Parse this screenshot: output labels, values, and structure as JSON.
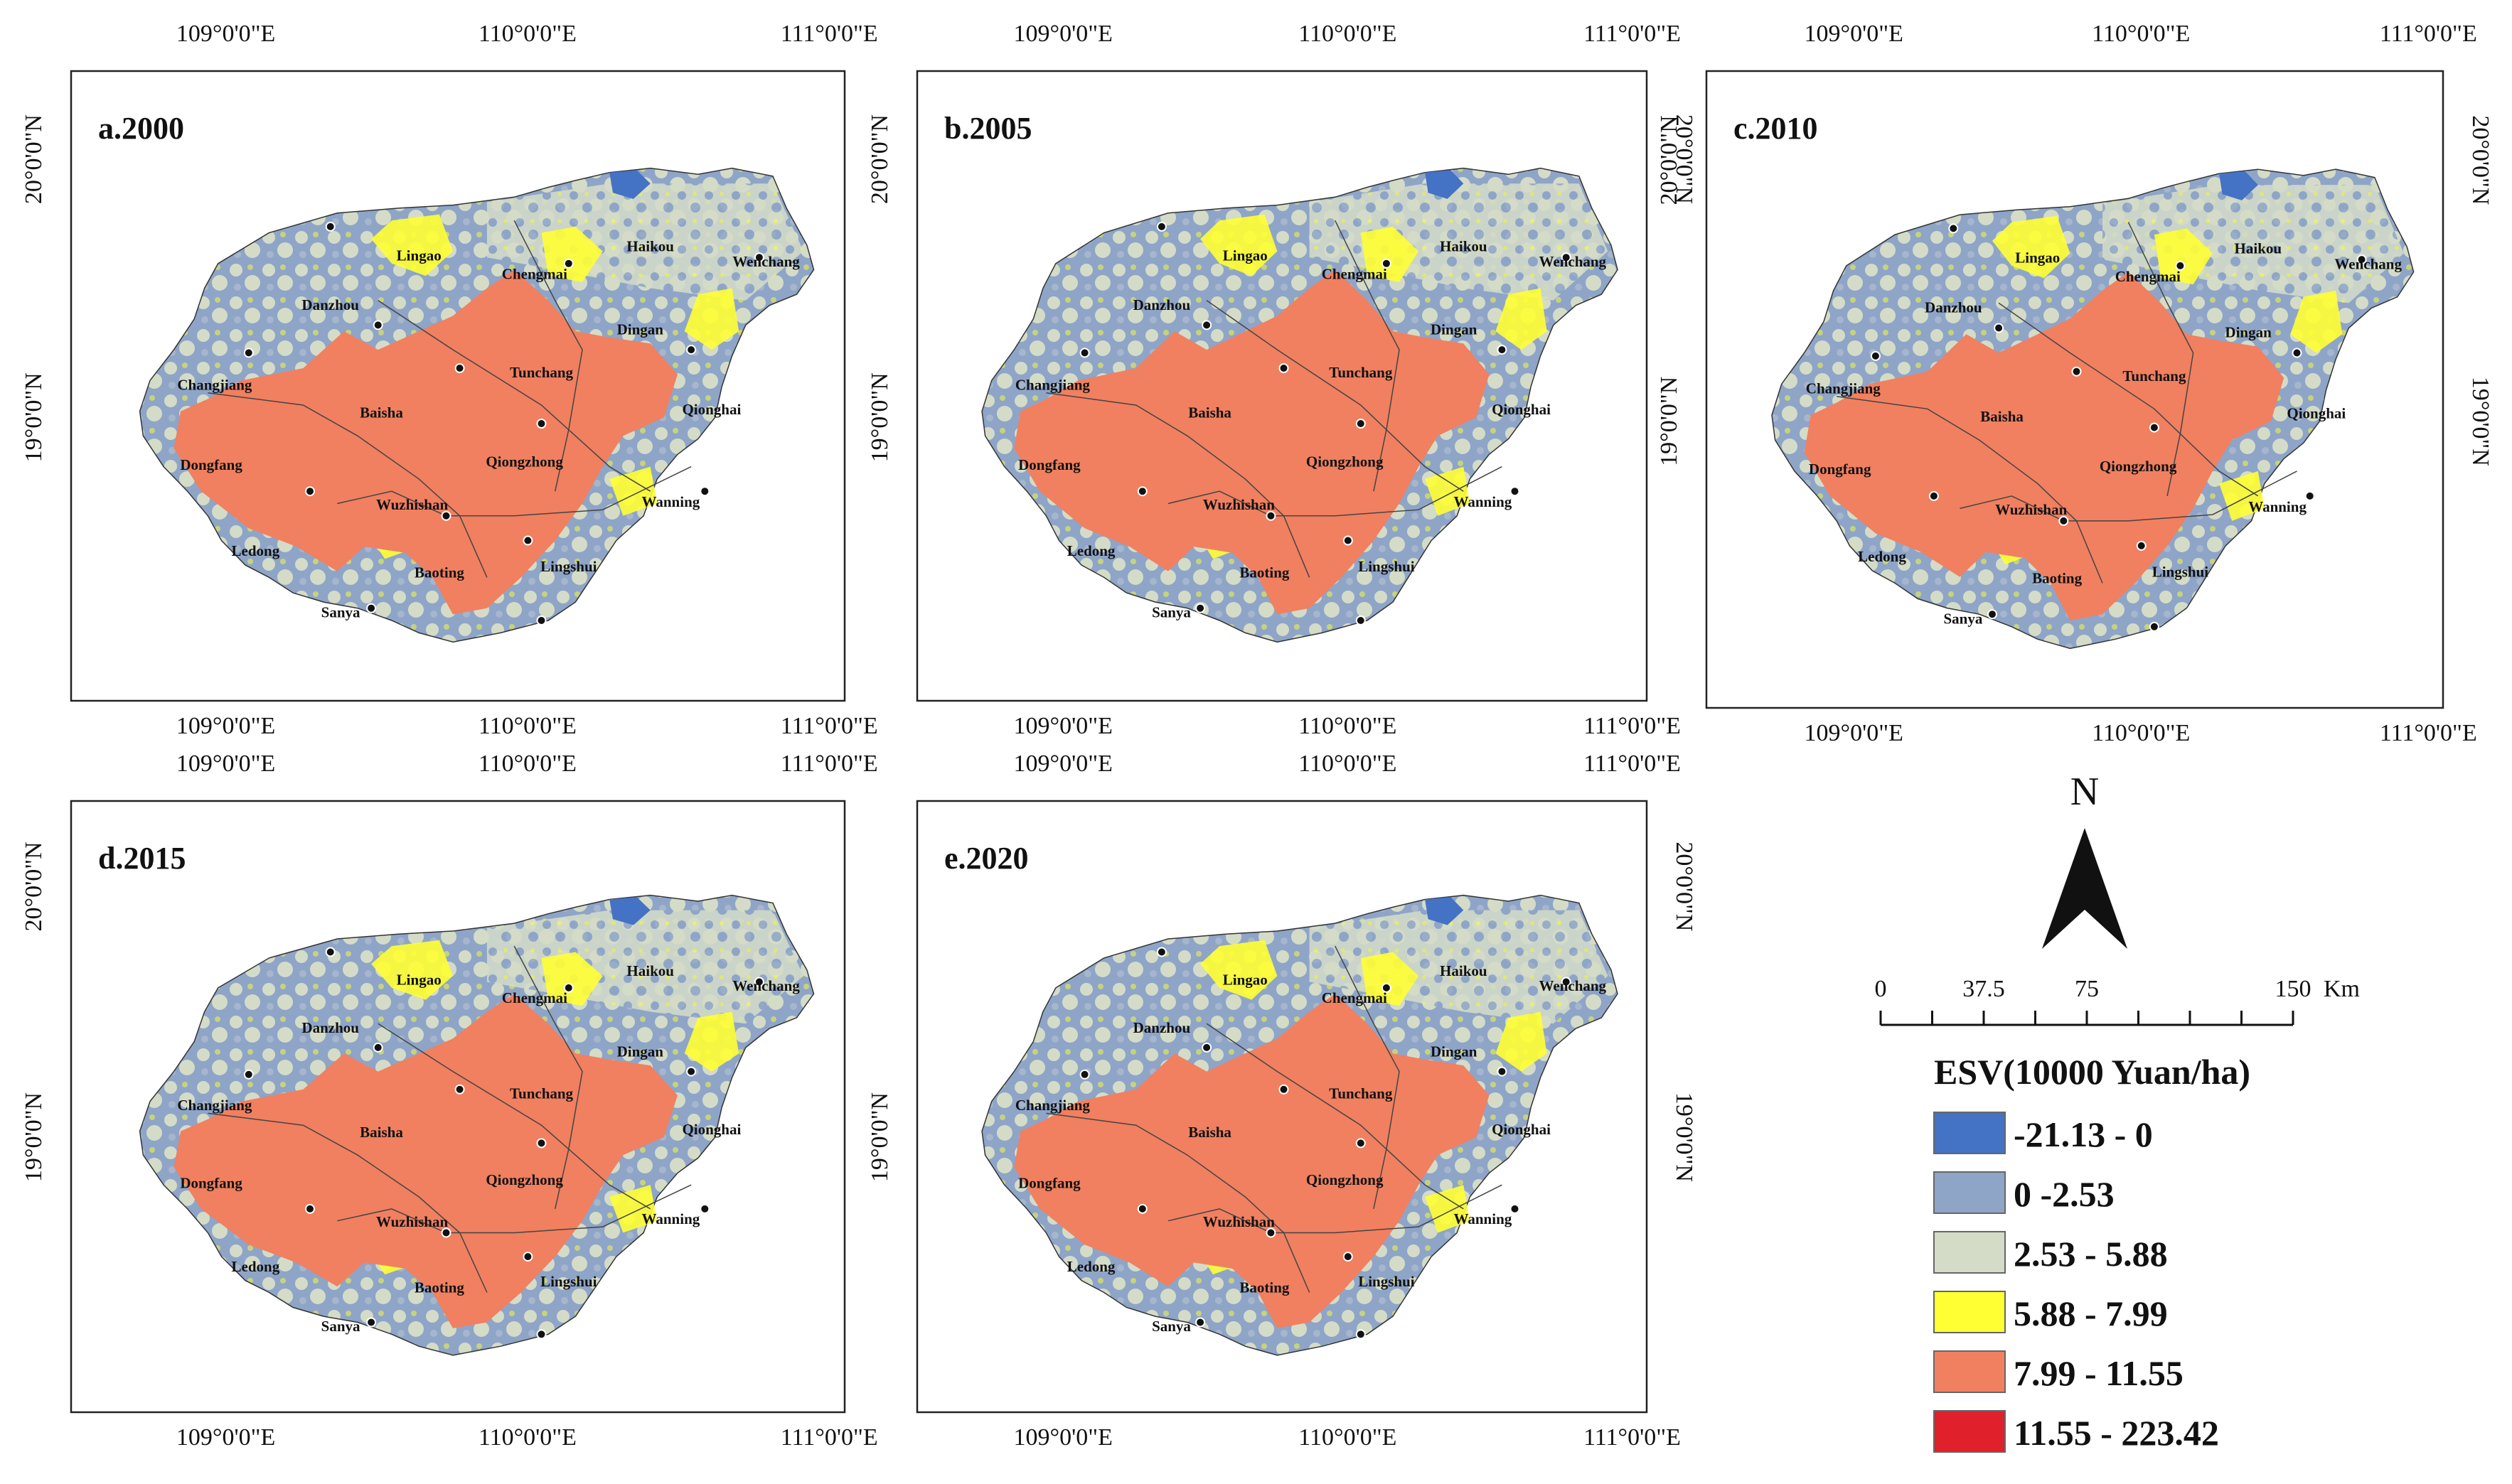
{
  "figure": {
    "panels": [
      {
        "id": "a",
        "label": "a.2000",
        "top_ticks": [
          "109°0'0\"E",
          "110°0'0\"E",
          "111°0'0\"E"
        ],
        "bottom_ticks": [
          "109°0'0\"E",
          "110°0'0\"E",
          "111°0'0\"E"
        ],
        "left_ticks": [
          "20°0'0\"N",
          "19°0'0\"N"
        ],
        "right_ticks": []
      },
      {
        "id": "b",
        "label": "b.2005",
        "top_ticks": [
          "109°0'0\"E",
          "110°0'0\"E",
          "111°0'0\"E"
        ],
        "bottom_ticks": [
          "109°0'0\"E",
          "110°0'0\"E",
          "111°0'0\"E"
        ],
        "left_ticks": [
          "20°0'0\"N",
          "19°0'0\"N"
        ],
        "right_ticks": [
          "20°0'0\"N"
        ]
      },
      {
        "id": "c",
        "label": "c.2010",
        "top_ticks": [
          "109°0'0\"E",
          "110°0'0\"E",
          "111°0'0\"E"
        ],
        "bottom_ticks": [
          "109°0'0\"E",
          "110°0'0\"E",
          "111°0'0\"E"
        ],
        "left_ticks": [
          "20°0'0\"N",
          "19°0'0\"N"
        ],
        "right_ticks": [
          "20°0'0\"N",
          "19°0'0\"N"
        ]
      },
      {
        "id": "d",
        "label": "d.2015",
        "top_ticks": [
          "109°0'0\"E",
          "110°0'0\"E",
          "111°0'0\"E"
        ],
        "bottom_ticks": [
          "109°0'0\"E",
          "110°0'0\"E",
          "111°0'0\"E"
        ],
        "left_ticks": [
          "20°0'0\"N",
          "19°0'0\"N"
        ],
        "right_ticks": []
      },
      {
        "id": "e",
        "label": "e.2020",
        "top_ticks": [
          "109°0'0\"E",
          "110°0'0\"E",
          "111°0'0\"E"
        ],
        "bottom_ticks": [
          "109°0'0\"E",
          "110°0'0\"E",
          "111°0'0\"E"
        ],
        "left_ticks": [
          "19°0'0\"N"
        ],
        "right_ticks": [
          "20°0'0\"N",
          "19°0'0\"N"
        ]
      }
    ],
    "places": [
      "Lingao",
      "Haikou",
      "Chengmai",
      "Wenchang",
      "Danzhou",
      "Dingan",
      "Tunchang",
      "Changjiang",
      "Baisha",
      "Qionghai",
      "Dongfang",
      "Qiongzhong",
      "Wuzhishan",
      "Wanning",
      "Ledong",
      "Baoting",
      "Lingshui",
      "Sanya"
    ],
    "north_arrow": {
      "letter": "N"
    },
    "scale_bar": {
      "ticks": [
        "0",
        "37.5",
        "75",
        "150"
      ],
      "unit": "Km"
    },
    "legend": {
      "title": "ESV(10000 Yuan/ha)",
      "classes": [
        {
          "label": "-21.13 - 0",
          "color": "#4472c4"
        },
        {
          "label": "0 -2.53",
          "color": "#8ea5c8"
        },
        {
          "label": "2.53 - 5.88",
          "color": "#d4dcc8"
        },
        {
          "label": "5.88 - 7.99",
          "color": "#ffff33"
        },
        {
          "label": "7.99 - 11.55",
          "color": "#f08060"
        },
        {
          "label": "11.55 - 223.42",
          "color": "#e0202a"
        }
      ]
    },
    "colors": {
      "low_neg": "#4472c4",
      "low": "#8ea5c8",
      "mid": "#d4dcc8",
      "high": "#ffff33",
      "higher": "#f08060",
      "highest": "#e0202a"
    }
  }
}
